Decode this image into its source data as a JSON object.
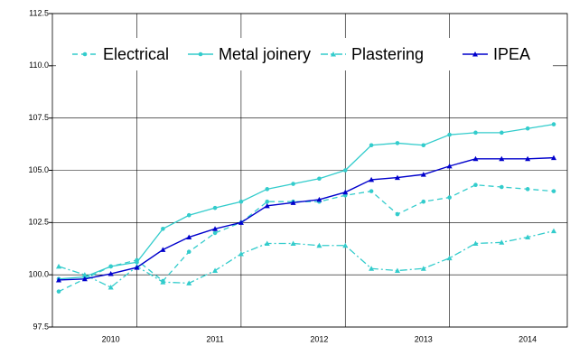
{
  "chart_data": {
    "type": "line",
    "categories": [
      null,
      null,
      "2010",
      null,
      null,
      null,
      "2011",
      null,
      null,
      null,
      "2012",
      null,
      null,
      null,
      "2013",
      null,
      null,
      null,
      "2014",
      null
    ],
    "series": [
      {
        "name": "Electrical",
        "color": "#33cccc",
        "dash": "6,4",
        "marker": "circle",
        "values": [
          99.2,
          99.8,
          100.4,
          100.7,
          99.7,
          101.1,
          102.0,
          102.5,
          103.5,
          103.5,
          103.5,
          103.8,
          104.0,
          102.9,
          103.5,
          103.7,
          104.3,
          104.2,
          104.1,
          104.0
        ]
      },
      {
        "name": "Metal joinery",
        "color": "#33cccc",
        "dash": "none",
        "marker": "circle",
        "values": [
          99.8,
          99.9,
          100.4,
          100.6,
          102.2,
          102.85,
          103.2,
          103.5,
          104.1,
          104.35,
          104.6,
          105.0,
          106.2,
          106.3,
          106.2,
          106.7,
          106.8,
          106.8,
          107.0,
          107.2
        ]
      },
      {
        "name": "Plastering",
        "color": "#33cccc",
        "dash": "8,3,2,3",
        "marker": "triangle",
        "values": [
          100.4,
          100.0,
          99.4,
          100.4,
          99.65,
          99.6,
          100.2,
          101.0,
          101.5,
          101.5,
          101.4,
          101.4,
          100.3,
          100.2,
          100.3,
          100.8,
          101.5,
          101.55,
          101.8,
          102.1
        ]
      },
      {
        "name": "IPEA",
        "color": "#0000cc",
        "dash": "none",
        "marker": "triangle",
        "values": [
          99.75,
          99.8,
          100.05,
          100.35,
          101.2,
          101.8,
          102.2,
          102.5,
          103.3,
          103.45,
          103.6,
          103.95,
          104.55,
          104.65,
          104.8,
          105.2,
          105.55,
          105.55,
          105.55,
          105.6
        ]
      }
    ],
    "ylim": [
      97.5,
      112.5
    ],
    "yticks": [
      97.5,
      {
        "value": 100,
        "label": "100.0"
      },
      102.5,
      {
        "value": 105,
        "label": "105.0"
      },
      107.5,
      {
        "value": 110,
        "label": "110.0"
      },
      112.5
    ],
    "grid": true
  }
}
